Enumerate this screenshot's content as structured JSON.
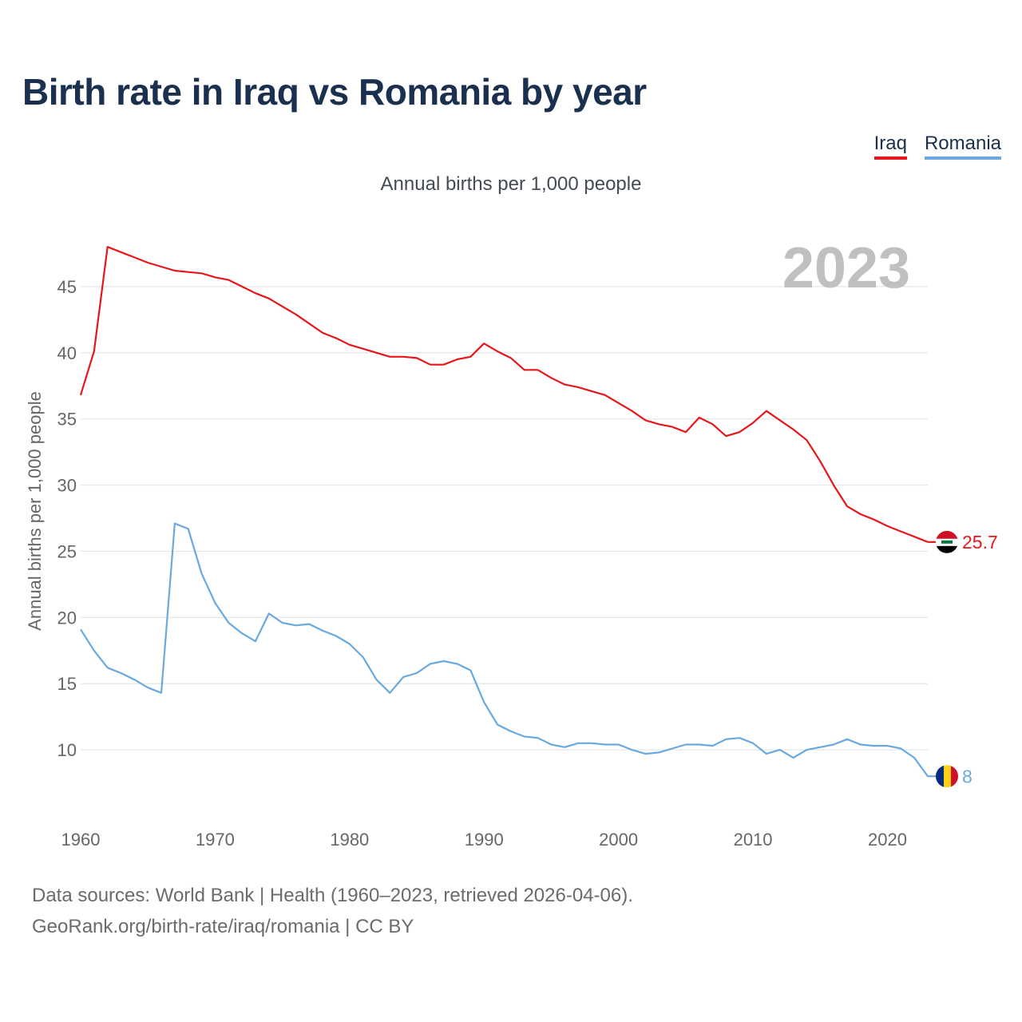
{
  "title": "Birth rate in Iraq vs Romania by year",
  "subtitle": "Annual births per 1,000 people",
  "legend": {
    "iraq": "Iraq",
    "romania": "Romania"
  },
  "colors": {
    "iraq": "#e8161b",
    "romania": "#6aa8e0",
    "title": "#1b2f4e",
    "grid": "#e6e6e6",
    "axis_text": "#666666",
    "year_watermark": "#c0c0c0"
  },
  "source": {
    "line1": "Data sources: World Bank | Health (1960–2023, retrieved 2026-04-06).",
    "line2": "GeoRank.org/birth-rate/iraq/romania | CC BY"
  },
  "chart_data": {
    "type": "line",
    "title": "Birth rate in Iraq vs Romania by year",
    "subtitle": "Annual births per 1,000 people",
    "ylabel": "Annual births per 1,000 people",
    "xlabel": "",
    "year_label": "2023",
    "xlim": [
      1960,
      2023
    ],
    "ylim": [
      5,
      50
    ],
    "x_ticks": [
      1960,
      1970,
      1980,
      1990,
      2000,
      2010,
      2020
    ],
    "y_ticks": [
      10,
      15,
      20,
      25,
      30,
      35,
      40,
      45
    ],
    "grid": true,
    "x": [
      1960,
      1961,
      1962,
      1963,
      1964,
      1965,
      1966,
      1967,
      1968,
      1969,
      1970,
      1971,
      1972,
      1973,
      1974,
      1975,
      1976,
      1977,
      1978,
      1979,
      1980,
      1981,
      1982,
      1983,
      1984,
      1985,
      1986,
      1987,
      1988,
      1989,
      1990,
      1991,
      1992,
      1993,
      1994,
      1995,
      1996,
      1997,
      1998,
      1999,
      2000,
      2001,
      2002,
      2003,
      2004,
      2005,
      2006,
      2007,
      2008,
      2009,
      2010,
      2011,
      2012,
      2013,
      2014,
      2015,
      2016,
      2017,
      2018,
      2019,
      2020,
      2021,
      2022,
      2023
    ],
    "series": [
      {
        "name": "Iraq",
        "color": "#e8161b",
        "end_label": "25.7",
        "values": [
          36.8,
          40.1,
          48.0,
          47.6,
          47.2,
          46.8,
          46.5,
          46.2,
          46.1,
          46.0,
          45.7,
          45.5,
          45.0,
          44.5,
          44.1,
          43.5,
          42.9,
          42.2,
          41.5,
          41.1,
          40.6,
          40.3,
          40.0,
          39.7,
          39.7,
          39.6,
          39.1,
          39.1,
          39.5,
          39.7,
          40.7,
          40.1,
          39.6,
          38.7,
          38.7,
          38.1,
          37.6,
          37.4,
          37.1,
          36.8,
          36.2,
          35.6,
          34.9,
          34.6,
          34.4,
          34.0,
          35.1,
          34.6,
          33.7,
          34.0,
          34.7,
          35.6,
          34.9,
          34.2,
          33.4,
          31.8,
          30.0,
          28.4,
          27.8,
          27.4,
          26.9,
          26.5,
          26.1,
          25.7
        ]
      },
      {
        "name": "Romania",
        "color": "#6aa8e0",
        "end_label": "8",
        "values": [
          19.1,
          17.5,
          16.2,
          15.8,
          15.3,
          14.7,
          14.3,
          27.1,
          26.7,
          23.3,
          21.1,
          19.6,
          18.8,
          18.2,
          20.3,
          19.6,
          19.4,
          19.5,
          19.0,
          18.6,
          18.0,
          17.0,
          15.3,
          14.3,
          15.5,
          15.8,
          16.5,
          16.7,
          16.5,
          16.0,
          13.6,
          11.9,
          11.4,
          11.0,
          10.9,
          10.4,
          10.2,
          10.5,
          10.5,
          10.4,
          10.4,
          10.0,
          9.7,
          9.8,
          10.1,
          10.4,
          10.4,
          10.3,
          10.8,
          10.9,
          10.5,
          9.7,
          10.0,
          9.4,
          10.0,
          10.2,
          10.4,
          10.8,
          10.4,
          10.3,
          10.3,
          10.1,
          9.4,
          8.0
        ]
      }
    ]
  }
}
